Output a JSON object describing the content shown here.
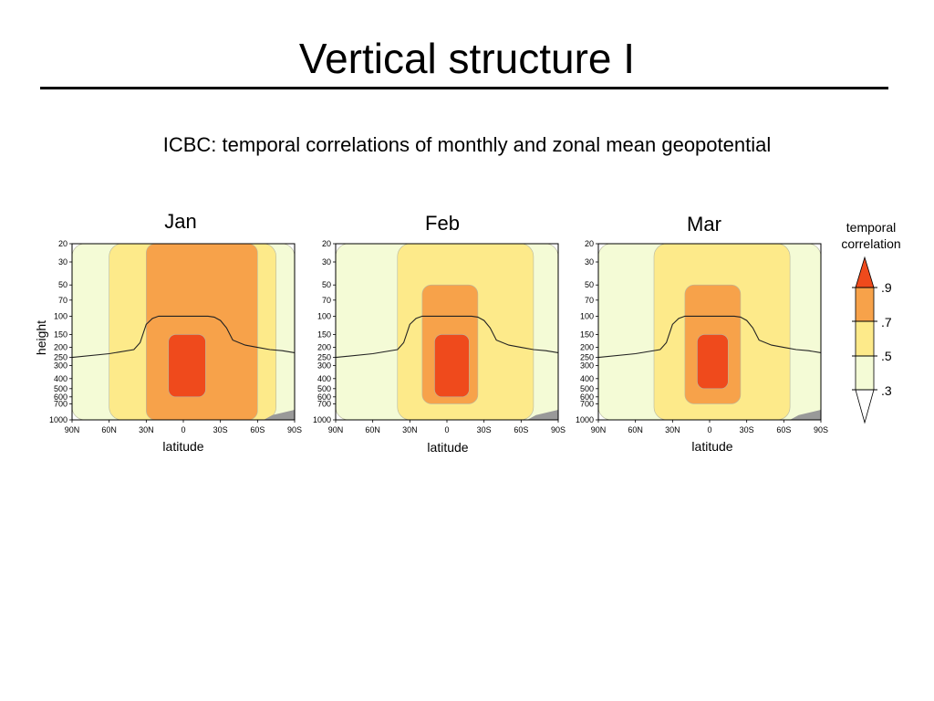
{
  "slide": {
    "title": "Vertical structure I",
    "subtitle": "ICBC: temporal correlations of monthly and zonal mean geopotential"
  },
  "colors": {
    "very_light": "#f4fbd6",
    "light": "#fdea8a",
    "medium": "#f7a24a",
    "high": "#ef4a1c",
    "terrain": "#999999"
  },
  "chart_data": [
    {
      "type": "heatmap",
      "title": "Jan",
      "xlabel": "latitude",
      "ylabel": "height",
      "x_ticks": [
        "90N",
        "60N",
        "30N",
        "0",
        "30S",
        "60S",
        "90S"
      ],
      "y_ticks": [
        "20",
        "30",
        "50",
        "70",
        "100",
        "150",
        "200",
        "250",
        "300",
        "400",
        "500",
        "600",
        "700",
        "1000"
      ],
      "x_range": [
        90,
        -90
      ],
      "y_range": [
        1000,
        20
      ],
      "regions": [
        {
          "level": 0.3,
          "lat_range": [
            90,
            -90
          ],
          "height_range": [
            1000,
            20
          ]
        },
        {
          "level": 0.5,
          "lat_range": [
            60,
            -75
          ],
          "height_range": [
            1000,
            20
          ]
        },
        {
          "level": 0.7,
          "lat_range": [
            30,
            -60
          ],
          "height_range": [
            1000,
            20
          ]
        },
        {
          "level": 0.9,
          "lat_range": [
            12,
            -18
          ],
          "height_range": [
            600,
            150
          ]
        }
      ]
    },
    {
      "type": "heatmap",
      "title": "Feb",
      "xlabel": "latitude",
      "x_ticks": [
        "90N",
        "60N",
        "30N",
        "0",
        "30S",
        "60S",
        "90S"
      ],
      "y_ticks": [
        "20",
        "30",
        "50",
        "70",
        "100",
        "150",
        "200",
        "250",
        "300",
        "400",
        "500",
        "600",
        "700",
        "1000"
      ],
      "x_range": [
        90,
        -90
      ],
      "y_range": [
        1000,
        20
      ],
      "regions": [
        {
          "level": 0.3,
          "lat_range": [
            90,
            -90
          ],
          "height_range": [
            1000,
            20
          ]
        },
        {
          "level": 0.5,
          "lat_range": [
            40,
            -70
          ],
          "height_range": [
            1000,
            20
          ]
        },
        {
          "level": 0.7,
          "lat_range": [
            20,
            -25
          ],
          "height_range": [
            700,
            50
          ]
        },
        {
          "level": 0.9,
          "lat_range": [
            10,
            -18
          ],
          "height_range": [
            600,
            150
          ]
        }
      ]
    },
    {
      "type": "heatmap",
      "title": "Mar",
      "xlabel": "latitude",
      "x_ticks": [
        "90N",
        "60N",
        "30N",
        "0",
        "30S",
        "60S",
        "90S"
      ],
      "y_ticks": [
        "20",
        "30",
        "50",
        "70",
        "100",
        "150",
        "200",
        "250",
        "300",
        "400",
        "500",
        "600",
        "700",
        "1000"
      ],
      "x_range": [
        90,
        -90
      ],
      "y_range": [
        1000,
        20
      ],
      "regions": [
        {
          "level": 0.3,
          "lat_range": [
            90,
            -90
          ],
          "height_range": [
            1000,
            20
          ]
        },
        {
          "level": 0.5,
          "lat_range": [
            45,
            -65
          ],
          "height_range": [
            1000,
            20
          ]
        },
        {
          "level": 0.7,
          "lat_range": [
            20,
            -25
          ],
          "height_range": [
            700,
            50
          ]
        },
        {
          "level": 0.9,
          "lat_range": [
            10,
            -15
          ],
          "height_range": [
            500,
            150
          ]
        }
      ]
    }
  ],
  "colorbar": {
    "title": "temporal correlation",
    "levels": [
      ".9",
      ".7",
      ".5",
      ".3"
    ]
  }
}
